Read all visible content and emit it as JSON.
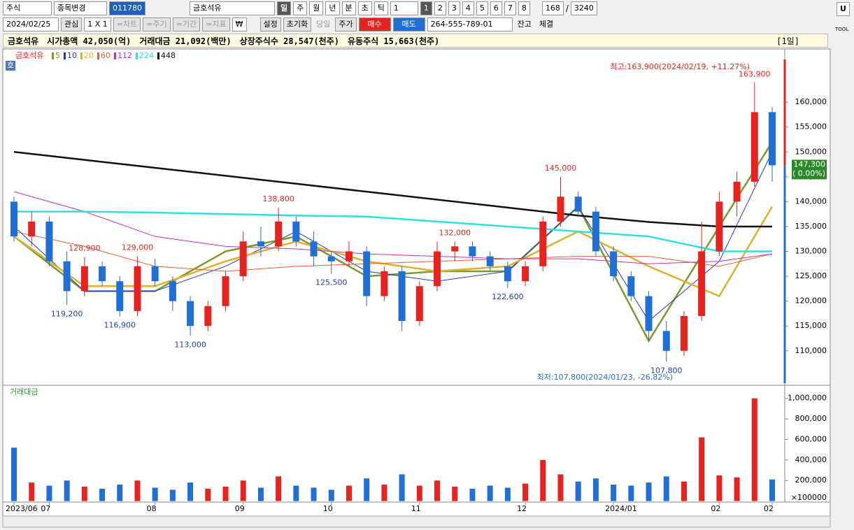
{
  "toolbar": {
    "market": "주식",
    "change": "종목변경",
    "code": "011780",
    "name": "금호석유",
    "periods": [
      "일",
      "주",
      "월",
      "년",
      "분",
      "초",
      "틱"
    ],
    "interval": "1",
    "slots": [
      1,
      2,
      3,
      4,
      5,
      6,
      7,
      8
    ],
    "count": 168,
    "separator": "/",
    "total": 3240
  },
  "toolbar2": {
    "date": "2024/02/25",
    "watch": "관심",
    "layout": "1 X 1",
    "tabs": [
      "=차트",
      "=주기",
      "=기간",
      "=지표"
    ],
    "currency": "₩",
    "settings": "설정",
    "reset": "초기화",
    "today": "당일",
    "price": "주가",
    "buy": "매수",
    "sell": "매도",
    "account": "264-555-789-01",
    "balance": "잔고",
    "filled": "체결"
  },
  "info_bar": {
    "name": "금호석유",
    "items": [
      "시가총액 42,050(억)",
      "거래대금 21,092(백만)",
      "상장주식수 28,547(천주)",
      "유동주식 15,663(천주)"
    ],
    "period": "[1일]"
  },
  "side": {
    "button": "U",
    "tool": "TOOL"
  },
  "chart_data": {
    "type": "candlestick",
    "title": "금호석유",
    "badge": "호",
    "categories": [
      "2023/06",
      null,
      "07",
      null,
      null,
      null,
      null,
      null,
      "08",
      null,
      null,
      null,
      null,
      "09",
      null,
      null,
      null,
      null,
      "10",
      null,
      null,
      null,
      null,
      "11",
      null,
      null,
      null,
      null,
      null,
      "12",
      null,
      null,
      null,
      null,
      "2024/01",
      null,
      null,
      null,
      null,
      null,
      "02",
      null,
      null,
      "02"
    ],
    "open": [
      140000,
      133000,
      136000,
      128000,
      122000,
      127000,
      124000,
      118000,
      127000,
      124000,
      120000,
      115000,
      119000,
      125000,
      132000,
      131000,
      136000,
      132000,
      129000,
      128000,
      130000,
      121000,
      126000,
      116000,
      123000,
      130000,
      131000,
      129000,
      127000,
      124000,
      127000,
      136000,
      141000,
      138000,
      130000,
      125000,
      121000,
      114000,
      110000,
      117000,
      130000,
      140000,
      144000,
      158000
    ],
    "high": [
      141000,
      138000,
      137000,
      130000,
      128900,
      128000,
      125000,
      129000,
      128500,
      125000,
      121000,
      120000,
      126000,
      134000,
      135000,
      138800,
      137000,
      134000,
      130000,
      132000,
      131000,
      127000,
      127000,
      124000,
      132000,
      132000,
      132000,
      130000,
      128000,
      128000,
      137000,
      145000,
      142000,
      139000,
      131000,
      126000,
      122000,
      116000,
      118000,
      136000,
      142000,
      146000,
      163900,
      159000
    ],
    "low": [
      132000,
      131000,
      127000,
      119200,
      121000,
      123000,
      116900,
      117000,
      123000,
      118000,
      113000,
      114000,
      118000,
      124000,
      129000,
      130000,
      131000,
      127000,
      125500,
      127000,
      119000,
      120000,
      114000,
      115000,
      122000,
      128000,
      128000,
      126000,
      122600,
      123000,
      126000,
      135000,
      137000,
      129000,
      124000,
      120000,
      112000,
      107800,
      109000,
      116000,
      129000,
      137000,
      143000,
      144000
    ],
    "close": [
      133000,
      136000,
      128000,
      122000,
      127000,
      124000,
      118000,
      127000,
      124000,
      120000,
      115000,
      119000,
      125000,
      132000,
      131000,
      136000,
      132000,
      129000,
      128000,
      130000,
      121000,
      126000,
      116000,
      123000,
      130000,
      131000,
      129000,
      127000,
      124000,
      127000,
      136000,
      141000,
      138000,
      130000,
      125000,
      121000,
      114000,
      110000,
      117000,
      130000,
      140000,
      144000,
      158000,
      147300
    ],
    "up_color": "#e8231f",
    "down_color": "#1f6fd6",
    "ylim": [
      103500,
      170000
    ],
    "yticks": [
      {
        "value": 110000,
        "label": "110,000"
      },
      {
        "value": 115000,
        "label": "115,000"
      },
      {
        "value": 120000,
        "label": "120,000"
      },
      {
        "value": 125000,
        "label": "125,000"
      },
      {
        "value": 130000,
        "label": "130,000"
      },
      {
        "value": 135000,
        "label": "135,000"
      },
      {
        "value": 140000,
        "label": "140,000"
      },
      {
        "value": 145000,
        "label": "145,000"
      },
      {
        "value": 150000,
        "label": "150,000"
      },
      {
        "value": 155000,
        "label": "155,000"
      },
      {
        "value": 160000,
        "label": "160,000"
      }
    ],
    "moving_averages": [
      {
        "name": "5",
        "color": "#7a9a2e",
        "x": [
          0,
          4,
          8,
          12,
          16,
          20,
          24,
          28,
          32,
          36,
          40,
          43
        ],
        "values": [
          133000,
          122000,
          122000,
          130000,
          133000,
          125000,
          126000,
          126000,
          139000,
          112000,
          135000,
          152000
        ]
      },
      {
        "name": "10",
        "color": "#2233cc",
        "x": [
          0,
          4,
          8,
          12,
          16,
          20,
          24,
          28,
          32,
          36,
          40,
          43
        ],
        "values": [
          135000,
          122000,
          122000,
          127000,
          134000,
          126000,
          124000,
          126000,
          139000,
          116000,
          128000,
          150000
        ]
      },
      {
        "name": "20",
        "color": "#e0b030",
        "x": [
          0,
          4,
          8,
          12,
          16,
          20,
          24,
          28,
          32,
          36,
          40,
          43
        ],
        "values": [
          133000,
          123000,
          123000,
          128000,
          132000,
          128000,
          126000,
          127000,
          134000,
          127000,
          121000,
          139000
        ]
      },
      {
        "name": "60",
        "color": "#e06030",
        "x": [
          0,
          4,
          8,
          12,
          16,
          20,
          24,
          28,
          32,
          36,
          40,
          43
        ],
        "values": [
          134000,
          131000,
          127000,
          126000,
          127000,
          127500,
          128000,
          128500,
          129000,
          129000,
          127000,
          129500
        ]
      },
      {
        "name": "112",
        "color": "#c030c0",
        "x": [
          0,
          4,
          8,
          12,
          16,
          20,
          24,
          28,
          32,
          36,
          40,
          43
        ],
        "values": [
          142000,
          138000,
          133000,
          131000,
          130500,
          129500,
          129000,
          128500,
          128500,
          127500,
          128000,
          129500
        ]
      },
      {
        "name": "224",
        "color": "#30e0e0",
        "x": [
          0,
          4,
          8,
          12,
          16,
          20,
          24,
          28,
          32,
          36,
          40,
          43
        ],
        "values": [
          138000,
          138000,
          137800,
          137500,
          137200,
          137000,
          136000,
          135000,
          134000,
          133000,
          130000,
          130000
        ]
      },
      {
        "name": "448",
        "color": "#111111",
        "x": [
          0,
          4,
          8,
          12,
          16,
          20,
          24,
          28,
          32,
          36,
          40,
          43
        ],
        "values": [
          150000,
          148400,
          146800,
          145200,
          143600,
          142000,
          140400,
          138800,
          137200,
          135900,
          135000,
          135000
        ]
      }
    ],
    "price_labels": [
      {
        "index": 42,
        "value": 163900,
        "label": "163,900"
      },
      {
        "index": 31,
        "value": 145000,
        "label": "145,000"
      },
      {
        "index": 15,
        "value": 138800,
        "label": "138,800"
      },
      {
        "index": 25,
        "value": 132000,
        "label": "132,000"
      },
      {
        "index": 4,
        "value": 128900,
        "label": "128,900"
      },
      {
        "index": 7,
        "value": 129000,
        "label": "129,000"
      },
      {
        "index": 18,
        "value": 125500,
        "label": "125,500"
      },
      {
        "index": 28,
        "value": 122600,
        "label": "122,600"
      },
      {
        "index": 3,
        "value": 119200,
        "label": "119,200"
      },
      {
        "index": 6,
        "value": 116900,
        "label": "116,900"
      },
      {
        "index": 10,
        "value": 113000,
        "label": "113,000"
      },
      {
        "index": 37,
        "value": 107800,
        "label": "107,800"
      }
    ],
    "high_note": "최고:163,900(2024/02/19, +11.27%)",
    "low_note": "최저:107,800(2024/01/23, -26.82%)",
    "last_label": "147,300",
    "last_change": "( 0.00%)",
    "volume": {
      "name": "거래대금",
      "unit": "×100000",
      "ylim": [
        0,
        1100000
      ],
      "yticks": [
        {
          "value": 200000,
          "label": "200,000"
        },
        {
          "value": 400000,
          "label": "400,000"
        },
        {
          "value": 600000,
          "label": "600,000"
        },
        {
          "value": 800000,
          "label": "800,000"
        },
        {
          "value": 1000000,
          "label": "1,000,000"
        }
      ],
      "values": [
        520000,
        180000,
        150000,
        200000,
        140000,
        120000,
        160000,
        200000,
        130000,
        110000,
        180000,
        120000,
        140000,
        200000,
        130000,
        240000,
        150000,
        130000,
        110000,
        150000,
        220000,
        160000,
        260000,
        150000,
        200000,
        140000,
        120000,
        150000,
        130000,
        170000,
        400000,
        260000,
        190000,
        220000,
        160000,
        150000,
        180000,
        240000,
        190000,
        620000,
        250000,
        230000,
        1000000,
        210000
      ]
    }
  }
}
